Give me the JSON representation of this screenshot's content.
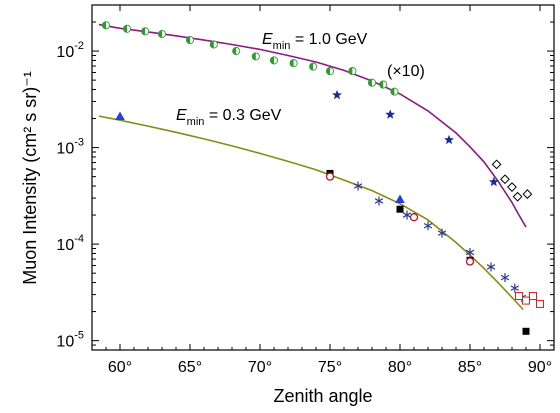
{
  "chart_data": {
    "type": "scatter",
    "xlabel": "Zenith angle",
    "ylabel": "Muon Intensity (cm² s sr)⁻¹",
    "xlim": [
      58,
      91
    ],
    "ylim": [
      8e-06,
      0.03
    ],
    "y_scale": "log",
    "x_ticks": [
      {
        "value": 60,
        "label": "60°"
      },
      {
        "value": 65,
        "label": "65°"
      },
      {
        "value": 70,
        "label": "70°"
      },
      {
        "value": 75,
        "label": "75°"
      },
      {
        "value": 80,
        "label": "80°"
      },
      {
        "value": 85,
        "label": "85°"
      },
      {
        "value": 90,
        "label": "90°"
      }
    ],
    "y_ticks": [
      {
        "value": 0.01,
        "base": "10",
        "exp": "-2"
      },
      {
        "value": 0.001,
        "base": "10",
        "exp": "-3"
      },
      {
        "value": 0.0001,
        "base": "10",
        "exp": "-4"
      },
      {
        "value": 1e-05,
        "base": "10",
        "exp": "-5"
      }
    ],
    "annotations": {
      "emin_high": {
        "sym": "E",
        "sub": "min",
        "rest": " = 1.0 GeV"
      },
      "emin_low": {
        "sym": "E",
        "sub": "min",
        "rest": " = 0.3 GeV"
      },
      "scale_note": "(×10)"
    },
    "curves": [
      {
        "color": "#8B1A89",
        "points": [
          [
            58.5,
            0.0188
          ],
          [
            60,
            0.0172
          ],
          [
            62,
            0.0158
          ],
          [
            64,
            0.0144
          ],
          [
            66,
            0.013
          ],
          [
            68,
            0.0117
          ],
          [
            70,
            0.0104
          ],
          [
            72,
            0.009
          ],
          [
            74,
            0.0077
          ],
          [
            76,
            0.0063
          ],
          [
            78,
            0.0049
          ],
          [
            80,
            0.0036
          ],
          [
            82,
            0.0024
          ],
          [
            84,
            0.00142
          ],
          [
            85,
            0.00102
          ],
          [
            86,
            0.00071
          ],
          [
            87,
            0.00045
          ],
          [
            88,
            0.00027
          ],
          [
            88.5,
            0.0002
          ],
          [
            89,
            0.00015
          ]
        ]
      },
      {
        "color": "#8A8A12",
        "points": [
          [
            58.5,
            0.00212
          ],
          [
            60,
            0.00192
          ],
          [
            62,
            0.00167
          ],
          [
            64,
            0.00144
          ],
          [
            66,
            0.00123
          ],
          [
            68,
            0.00104
          ],
          [
            70,
            0.00087
          ],
          [
            72,
            0.00072
          ],
          [
            74,
            0.00059
          ],
          [
            75,
            0.00052
          ],
          [
            76,
            0.00046
          ],
          [
            78,
            0.000358
          ],
          [
            80,
            0.000262
          ],
          [
            82,
            0.000178
          ],
          [
            84,
            0.000104
          ],
          [
            85,
            7.7e-05
          ],
          [
            86,
            5.6e-05
          ],
          [
            87,
            4e-05
          ],
          [
            88,
            2.8e-05
          ],
          [
            88.8,
            2.1e-05
          ]
        ]
      }
    ],
    "series": [
      {
        "marker": "half-circle",
        "color": "#2E9B2E",
        "points": [
          [
            59,
            0.0185
          ],
          [
            60.5,
            0.017
          ],
          [
            61.8,
            0.016
          ],
          [
            63,
            0.015
          ],
          [
            65,
            0.013
          ],
          [
            66.7,
            0.0117
          ],
          [
            68.3,
            0.01
          ],
          [
            69.7,
            0.0088
          ],
          [
            71,
            0.008
          ],
          [
            72.4,
            0.0075
          ],
          [
            73.8,
            0.0069
          ],
          [
            75,
            0.0062
          ],
          [
            76.6,
            0.0062
          ],
          [
            78,
            0.0047
          ],
          [
            78.8,
            0.0045
          ],
          [
            79.6,
            0.0038
          ]
        ]
      },
      {
        "marker": "star",
        "color": "#1A2A9A",
        "points": [
          [
            75.5,
            0.0035
          ],
          [
            79.3,
            0.0022
          ],
          [
            83.5,
            0.0012
          ],
          [
            86.7,
            0.00044
          ]
        ]
      },
      {
        "marker": "open-diamond",
        "color": "#000000",
        "points": [
          [
            86.9,
            0.00067
          ],
          [
            87.5,
            0.00047
          ],
          [
            88,
            0.00039
          ],
          [
            88.4,
            0.00031
          ],
          [
            89.1,
            0.00033
          ]
        ]
      },
      {
        "marker": "filled-triangle",
        "color": "#1F3FE0",
        "points": [
          [
            60,
            0.0021
          ],
          [
            80,
            0.00029
          ]
        ]
      },
      {
        "marker": "filled-square",
        "color": "#000000",
        "points": [
          [
            75,
            0.00054
          ],
          [
            80,
            0.00023
          ],
          [
            85,
            6.8e-05
          ],
          [
            89,
            1.25e-05
          ]
        ]
      },
      {
        "marker": "open-circle",
        "color": "#C0102A",
        "points": [
          [
            75,
            0.0005
          ],
          [
            81,
            0.00019
          ],
          [
            85,
            6.6e-05
          ]
        ]
      },
      {
        "marker": "asterisk",
        "color": "#2A3A9A",
        "points": [
          [
            77,
            0.0004
          ],
          [
            78.5,
            0.00028
          ],
          [
            80.5,
            0.0002
          ],
          [
            82,
            0.000155
          ],
          [
            83,
            0.00013
          ],
          [
            85,
            8.2e-05
          ],
          [
            86.5,
            5.8e-05
          ],
          [
            87.5,
            4.5e-05
          ],
          [
            88.2,
            3.5e-05
          ],
          [
            88.7,
            2.8e-05
          ]
        ]
      },
      {
        "marker": "open-square",
        "color": "#E02020",
        "points": [
          [
            88.5,
            2.9e-05
          ],
          [
            89,
            2.6e-05
          ],
          [
            89.5,
            2.9e-05
          ],
          [
            90,
            2.4e-05
          ]
        ]
      }
    ]
  }
}
